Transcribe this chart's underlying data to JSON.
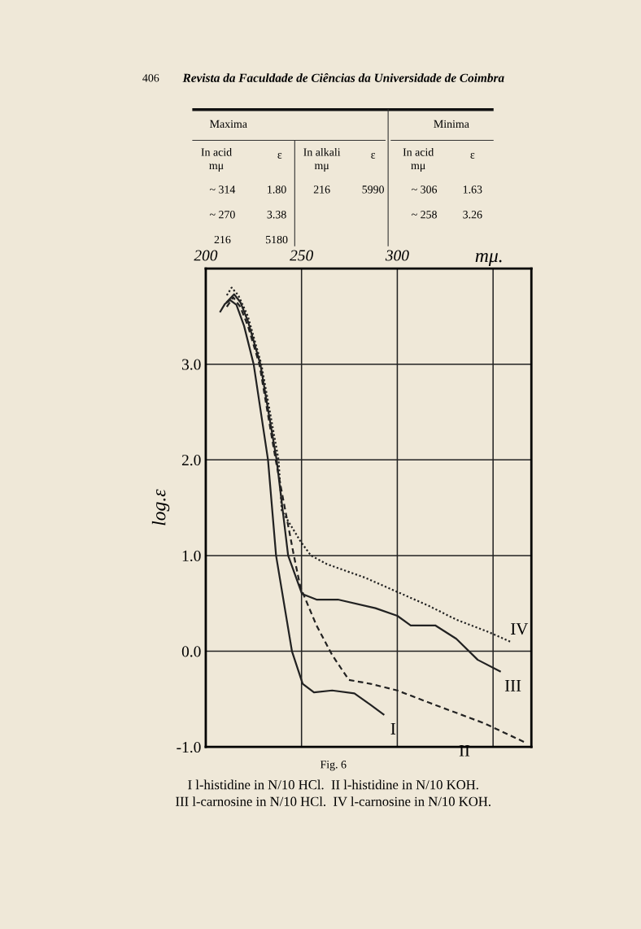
{
  "chart_data": [
    {
      "type": "other",
      "title": "Revista da Faculdade de Ciências da Universidade de Coimbra",
      "annotations": [
        "406",
        "Maxima",
        "Minima",
        "In acid\nmμ",
        "ε",
        "In alkali\nmμ",
        "ε",
        "In acid\nmμ",
        "ε",
        "~ 314",
        "1.80",
        "216",
        "5990",
        "~ 306",
        "1.63",
        "~ 270",
        "3.38",
        "~ 258",
        "3.26",
        "216",
        "5180"
      ]
    },
    {
      "type": "line",
      "xlabel": "mμ.",
      "ylabel": "log.ε",
      "xlim": [
        200,
        370
      ],
      "ylim": [
        -1,
        4
      ],
      "xticks": [
        200,
        250,
        300,
        {
          "value": 350,
          "label": null
        }
      ],
      "yticks": [
        {
          "value": -1,
          "label": "-1.0"
        },
        {
          "value": 0,
          "label": "0.0"
        },
        {
          "value": 1,
          "label": "1.0"
        },
        {
          "value": 2,
          "label": "2.0"
        },
        {
          "value": 3,
          "label": "3.0"
        },
        {
          "value": 4,
          "label": null
        }
      ],
      "grid": true,
      "legend": false,
      "marker": "none",
      "tick_labels": "xy",
      "series": [
        {
          "name": "I",
          "color": "#222222",
          "line_style": "solid",
          "x": [
            207.6,
            210,
            212.7,
            216,
            220,
            225,
            232.5,
            236.7,
            245,
            250.6,
            256.5,
            266,
            277.6,
            286,
            292.8
          ],
          "values": [
            3.55,
            3.63,
            3.67,
            3.62,
            3.4,
            3.0,
            2.0,
            1.0,
            0.0,
            -0.34,
            -0.43,
            -0.41,
            -0.44,
            -0.56,
            -0.66
          ]
        },
        {
          "name": "II",
          "color": "#222222",
          "line_style": "dashed",
          "x": [
            211,
            214.3,
            218,
            222,
            228,
            236.5,
            246,
            249.4,
            257.8,
            266,
            274.7,
            286,
            300,
            316.9,
            345,
            367.5
          ],
          "values": [
            3.6,
            3.7,
            3.6,
            3.4,
            3.0,
            2.0,
            1.0,
            0.67,
            0.27,
            -0.04,
            -0.3,
            -0.34,
            -0.41,
            -0.54,
            -0.75,
            -0.96
          ]
        },
        {
          "name": "III",
          "color": "#222222",
          "line_style": "solid",
          "x": [
            211,
            214.8,
            218,
            222,
            228.5,
            237,
            243,
            250.2,
            257.8,
            269,
            288.6,
            300,
            307,
            319.8,
            330.8,
            342,
            353.6
          ],
          "values": [
            3.65,
            3.73,
            3.65,
            3.45,
            3.0,
            2.0,
            1.0,
            0.6,
            0.54,
            0.54,
            0.45,
            0.37,
            0.27,
            0.27,
            0.13,
            -0.09,
            -0.21
          ]
        },
        {
          "name": "IV",
          "color": "#222222",
          "line_style": "dotted",
          "x": [
            211,
            213.5,
            217,
            222,
            229,
            238,
            239.7,
            249.4,
            254.9,
            263.3,
            283,
            300,
            316.9,
            330.8,
            347.7,
            359
          ],
          "values": [
            3.72,
            3.8,
            3.72,
            3.5,
            3.0,
            2.0,
            1.47,
            1.15,
            1.0,
            0.91,
            0.77,
            0.62,
            0.47,
            0.33,
            0.2,
            0.1
          ]
        }
      ],
      "annotations": [
        "Fig. 6",
        "I l-histidine in N/10 HCl.  II l-histidine in N/10 KOH.",
        "III l-carnosine in N/10 HCl.  IV l-carnosine in N/10 KOH."
      ]
    }
  ]
}
